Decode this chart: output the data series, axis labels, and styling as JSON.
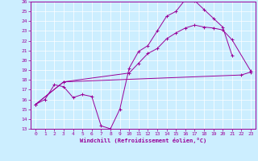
{
  "bg_color": "#cceeff",
  "line_color": "#990099",
  "grid_color": "#ffffff",
  "xlabel": "Windchill (Refroidissement éolien,°C)",
  "xlim": [
    -0.5,
    23.5
  ],
  "ylim": [
    13,
    26
  ],
  "xticks": [
    0,
    1,
    2,
    3,
    4,
    5,
    6,
    7,
    8,
    9,
    10,
    11,
    12,
    13,
    14,
    15,
    16,
    17,
    18,
    19,
    20,
    21,
    22,
    23
  ],
  "yticks": [
    13,
    14,
    15,
    16,
    17,
    18,
    19,
    20,
    21,
    22,
    23,
    24,
    25,
    26
  ],
  "line1_x": [
    0,
    1,
    2,
    3,
    4,
    5,
    6,
    7,
    8,
    9,
    10,
    11,
    12,
    13,
    14,
    15,
    16,
    17,
    18,
    19,
    20,
    21
  ],
  "line1_y": [
    15.5,
    16.0,
    17.5,
    17.3,
    16.2,
    16.5,
    16.3,
    13.3,
    13.0,
    15.0,
    19.2,
    20.9,
    21.5,
    23.0,
    24.5,
    25.0,
    26.2,
    26.1,
    25.2,
    24.3,
    23.4,
    20.5
  ],
  "line2_x": [
    0,
    3,
    22,
    23
  ],
  "line2_y": [
    15.5,
    17.8,
    18.5,
    18.8
  ],
  "line3_x": [
    0,
    3,
    10,
    11,
    12,
    13,
    14,
    15,
    16,
    17,
    18,
    19,
    20,
    21,
    23
  ],
  "line3_y": [
    15.5,
    17.8,
    18.7,
    19.7,
    20.7,
    21.2,
    22.2,
    22.8,
    23.3,
    23.6,
    23.4,
    23.3,
    23.1,
    22.1,
    18.9
  ]
}
